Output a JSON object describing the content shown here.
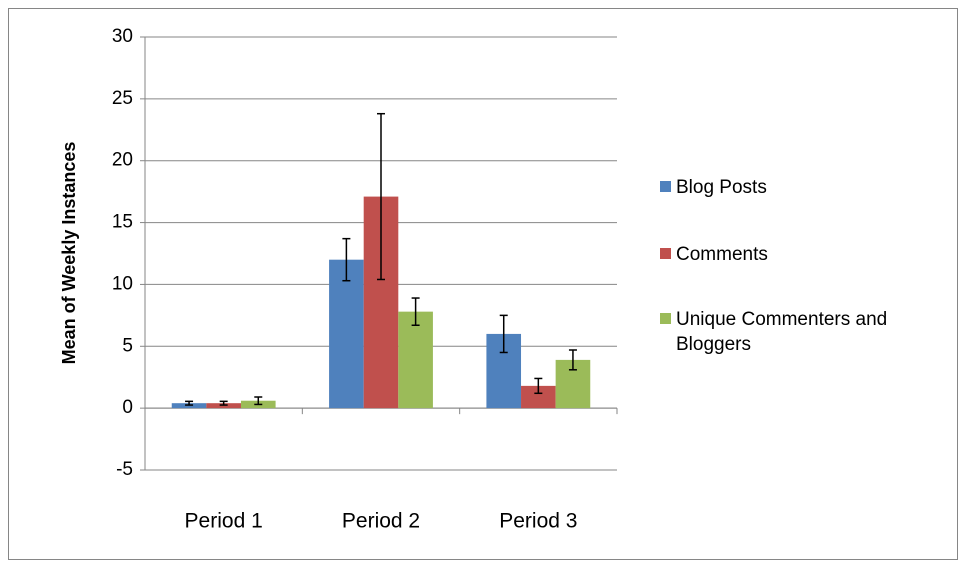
{
  "chart_data": {
    "type": "bar",
    "ylabel": "Mean of Weekly Instances",
    "categories": [
      "Period 1",
      "Period 2",
      "Period 3"
    ],
    "series": [
      {
        "name": "Blog Posts",
        "color": "#4f81bd",
        "values": [
          0.4,
          12.0,
          6.0
        ],
        "errors": [
          0.15,
          1.7,
          1.5
        ]
      },
      {
        "name": "Comments",
        "color": "#c0504d",
        "values": [
          0.4,
          17.1,
          1.8
        ],
        "errors": [
          0.15,
          6.7,
          0.6
        ]
      },
      {
        "name": "Unique Commenters and Bloggers",
        "color": "#9bbb59",
        "values": [
          0.6,
          7.8,
          3.9
        ],
        "errors": [
          0.3,
          1.1,
          0.8
        ]
      }
    ],
    "ylim": [
      -5,
      30
    ],
    "yticks": [
      -5,
      0,
      5,
      10,
      15,
      20,
      25,
      30
    ],
    "grid": true,
    "legend": "right"
  }
}
